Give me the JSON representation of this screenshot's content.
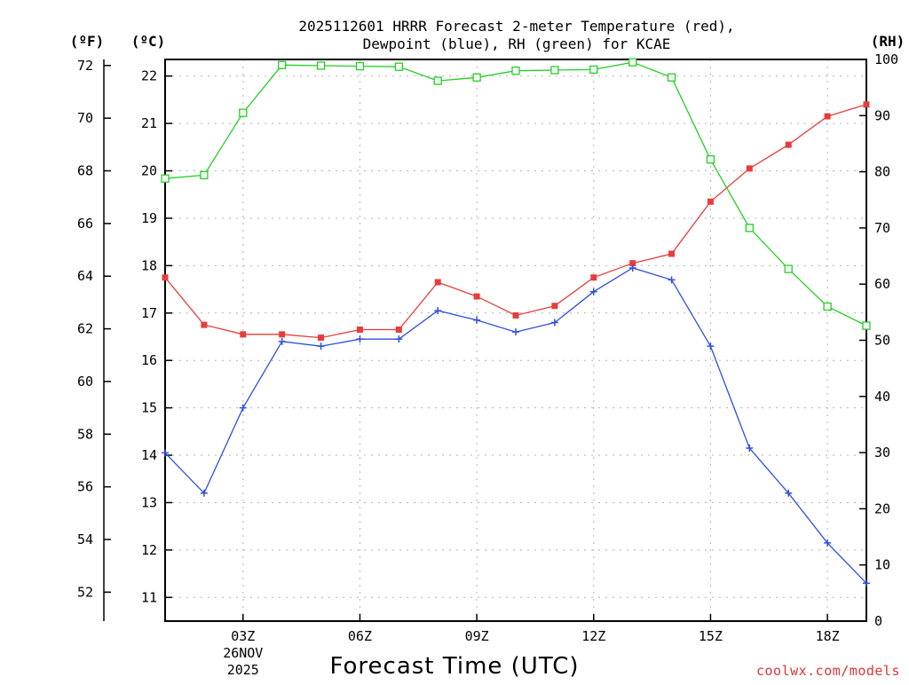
{
  "chart_data": {
    "type": "line",
    "title_line1": "2025112601 HRRR Forecast 2-meter Temperature (red),",
    "title_line2": "Dewpoint (blue), RH (green) for KCAE",
    "xlabel": "Forecast Time (UTC)",
    "credit": "coolwx.com/models",
    "units": {
      "fahrenheit": "(ºF)",
      "celsius": "(ºC)",
      "rh": "(RH)"
    },
    "x": [
      1,
      2,
      3,
      4,
      5,
      6,
      7,
      8,
      9,
      10,
      11,
      12,
      13,
      14,
      15,
      16,
      17,
      18,
      19
    ],
    "xlim": [
      1,
      19
    ],
    "x_ticks": [
      {
        "x": 3,
        "label": "03Z",
        "date": "26NOV",
        "year": "2025"
      },
      {
        "x": 6,
        "label": "06Z"
      },
      {
        "x": 9,
        "label": "09Z"
      },
      {
        "x": 12,
        "label": "12Z"
      },
      {
        "x": 15,
        "label": "15Z"
      },
      {
        "x": 18,
        "label": "18Z"
      }
    ],
    "celsius_axis": {
      "ylim": [
        10.5,
        22.35
      ],
      "ticks": [
        11,
        12,
        13,
        14,
        15,
        16,
        17,
        18,
        19,
        20,
        21,
        22
      ]
    },
    "fahrenheit_axis": {
      "ticks": [
        52,
        54,
        56,
        58,
        60,
        62,
        64,
        66,
        68,
        70,
        72
      ]
    },
    "rh_axis": {
      "ylim": [
        0,
        100
      ],
      "ticks": [
        0,
        10,
        20,
        30,
        40,
        50,
        60,
        70,
        80,
        90,
        100
      ]
    },
    "series": [
      {
        "name": "Temperature",
        "axis": "celsius",
        "color": "#e83c3c",
        "marker": "filled-square",
        "values": [
          17.75,
          16.75,
          16.55,
          16.55,
          16.48,
          16.65,
          16.65,
          17.65,
          17.35,
          16.95,
          17.15,
          17.75,
          18.05,
          18.25,
          19.35,
          20.05,
          20.55,
          21.15,
          21.4
        ]
      },
      {
        "name": "Dewpoint",
        "axis": "celsius",
        "color": "#2f4fe0",
        "marker": "plus",
        "values": [
          14.05,
          13.2,
          15.0,
          16.4,
          16.3,
          16.45,
          16.45,
          17.05,
          16.85,
          16.6,
          16.8,
          17.45,
          17.95,
          17.7,
          16.3,
          14.15,
          13.2,
          12.15,
          11.3
        ]
      },
      {
        "name": "RH",
        "axis": "rh",
        "color": "#22d022",
        "marker": "open-square",
        "values": [
          78.8,
          79.4,
          90.5,
          99.0,
          98.9,
          98.8,
          98.7,
          96.2,
          96.8,
          98.0,
          98.1,
          98.2,
          99.5,
          96.8,
          82.2,
          70.0,
          62.7,
          56.0,
          52.6
        ]
      }
    ]
  }
}
